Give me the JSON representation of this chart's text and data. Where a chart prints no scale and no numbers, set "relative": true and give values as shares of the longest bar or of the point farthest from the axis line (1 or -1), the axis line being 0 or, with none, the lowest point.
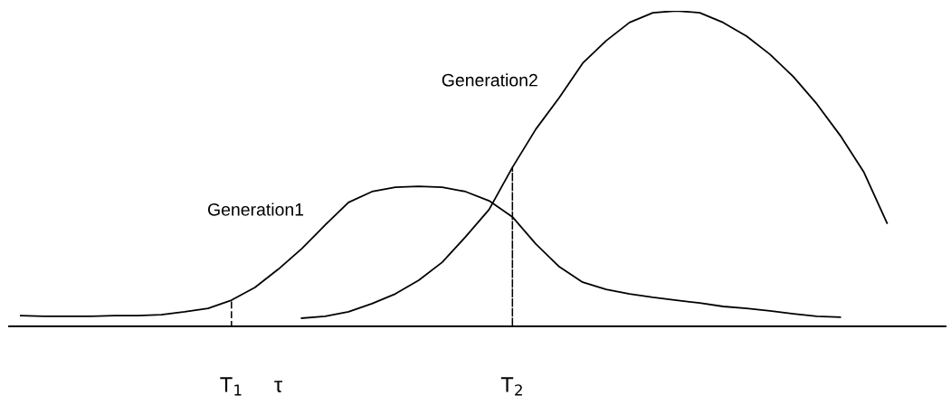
{
  "chart_data": {
    "type": "line",
    "relative": true,
    "categories": [
      null,
      null,
      null,
      null,
      null,
      null,
      null,
      null,
      null,
      "T$_{1}$",
      null,
      "τ",
      null,
      null,
      null,
      null,
      null,
      null,
      null,
      null,
      null,
      "T$_{2}$",
      null,
      null,
      null,
      null,
      null,
      null,
      null,
      null,
      null,
      null,
      null,
      null,
      null,
      null,
      null,
      null,
      null,
      null
    ],
    "tick_labels": "x",
    "grid": false,
    "legend": false,
    "marker": "none",
    "series": [
      {
        "name": "Generation1",
        "color": "#000000",
        "line_style": "solid",
        "values": [
          0.034,
          0.032,
          0.032,
          0.032,
          0.034,
          0.034,
          0.037,
          0.046,
          0.057,
          0.083,
          0.123,
          0.181,
          0.246,
          0.321,
          0.393,
          0.427,
          0.441,
          0.444,
          0.441,
          0.427,
          0.398,
          0.347,
          0.261,
          0.189,
          0.14,
          0.117,
          0.103,
          0.092,
          0.083,
          0.074,
          0.063,
          0.057,
          0.049,
          0.04,
          0.032,
          0.029,
          null,
          null,
          null,
          null
        ]
      },
      {
        "name": "Generation2",
        "color": "#000000",
        "line_style": "solid",
        "values": [
          null,
          null,
          null,
          null,
          null,
          null,
          null,
          null,
          null,
          null,
          null,
          null,
          0.026,
          0.032,
          0.046,
          0.072,
          0.103,
          0.146,
          0.203,
          0.284,
          0.37,
          0.504,
          0.625,
          0.725,
          0.834,
          0.905,
          0.963,
          0.994,
          1.0,
          0.994,
          0.963,
          0.92,
          0.862,
          0.791,
          0.705,
          0.605,
          0.49,
          0.327,
          null,
          null
        ]
      },
      {
        "type": "bar",
        "color": "#000000",
        "line_style": "dashed",
        "values": [
          null,
          null,
          null,
          null,
          null,
          null,
          null,
          null,
          null,
          0.083,
          null,
          null,
          null,
          null,
          null,
          null,
          null,
          null,
          null,
          null,
          null,
          0.504,
          null,
          null,
          null,
          null,
          null,
          null,
          null,
          null,
          null,
          null,
          null,
          null,
          null,
          null,
          null,
          null,
          null,
          null
        ]
      }
    ]
  }
}
